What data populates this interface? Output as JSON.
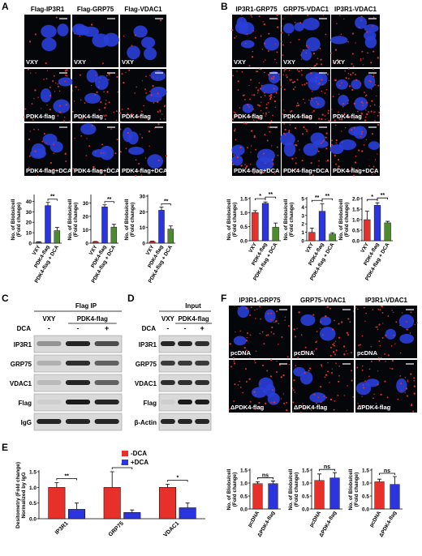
{
  "figure": {
    "A": {
      "label": "A",
      "headers": [
        "Flag-IP3R1",
        "Flag-GRP75",
        "Flag-VDAC1"
      ],
      "rows": [
        "VXY",
        "PDK4-flag",
        "PDK4-flag+DCA"
      ]
    },
    "B": {
      "label": "B",
      "headers": [
        "IP3R1-GRP75",
        "GRP75-VDAC1",
        "IP3R1-VDAC1"
      ],
      "rows": [
        "VXY",
        "PDK4-flag",
        "PDK4-flag+DCA"
      ]
    },
    "C": {
      "label": "C",
      "title": "Flag IP",
      "groups": [
        "VXY",
        "PDK4-flag"
      ],
      "treatment": "DCA",
      "signs": [
        "-",
        "-",
        "+"
      ],
      "rows": [
        "IP3R1",
        "GRP75",
        "VDAC1",
        "Flag",
        "IgG"
      ]
    },
    "D": {
      "label": "D",
      "title": "Input",
      "groups": [
        "VXY",
        "PDK4-flag"
      ],
      "treatment": "DCA",
      "signs": [
        "-",
        "-",
        "+"
      ],
      "rows": [
        "IP3R1",
        "GRP75",
        "VDAC1",
        "Flag",
        "β-Actin"
      ]
    },
    "E": {
      "label": "E"
    },
    "F": {
      "label": "F",
      "headers": [
        "IP3R1-GRP75",
        "GRP75-VDAC1",
        "IP3R1-VDAC1"
      ],
      "rows": [
        "pcDNA",
        "ΔPDK4-flag"
      ]
    }
  },
  "chart_data": [
    {
      "type": "bar",
      "ylabel": [
        "No. of Blobs/cell",
        "(Fold change)"
      ],
      "categories": [
        "VXY",
        "PDK4-flag",
        "PDK4-flag + DCA"
      ],
      "colors": [
        "#e8302a",
        "#2a35e0",
        "#4e8a2f"
      ],
      "values": [
        1,
        36,
        12
      ],
      "errors": [
        0.3,
        3,
        3
      ],
      "ylim": [
        0,
        45
      ],
      "yticks": [
        0,
        10,
        20,
        30,
        40
      ],
      "significance": [
        "**"
      ]
    },
    {
      "type": "bar",
      "ylabel": [
        "No. of Blobs/cell",
        "(Fold change)"
      ],
      "categories": [
        "VXY",
        "PDK4-flag",
        "PDK4-flag + DCA"
      ],
      "colors": [
        "#e8302a",
        "#2a35e0",
        "#4e8a2f"
      ],
      "values": [
        1,
        27,
        12
      ],
      "errors": [
        0.3,
        1.5,
        2
      ],
      "ylim": [
        0,
        35
      ],
      "yticks": [
        0,
        10,
        20,
        30
      ],
      "significance": [
        "**"
      ]
    },
    {
      "type": "bar",
      "ylabel": [
        "No. of Blobs/cell",
        "(Fold change)"
      ],
      "categories": [
        "VXY",
        "PDK4-flag",
        "PDK4-flag + DCA"
      ],
      "colors": [
        "#e8302a",
        "#2a35e0",
        "#4e8a2f"
      ],
      "values": [
        1,
        21,
        9
      ],
      "errors": [
        0.3,
        2,
        2
      ],
      "ylim": [
        0,
        30
      ],
      "yticks": [
        0,
        10,
        20,
        30
      ],
      "significance": [
        "**"
      ]
    },
    {
      "type": "bar",
      "ylabel": [
        "No. of Blobs/cell",
        "(Fold change)"
      ],
      "categories": [
        "VXY",
        "PDK4-flag",
        "PDK4-flag + DCA"
      ],
      "colors": [
        "#e8302a",
        "#2a35e0",
        "#4e8a2f"
      ],
      "values": [
        1.0,
        1.33,
        0.48
      ],
      "errors": [
        0.07,
        0.05,
        0.15
      ],
      "ylim": [
        0,
        1.5
      ],
      "yticks": [
        {
          "value": 0,
          "label": "0.0"
        },
        0.5,
        {
          "value": 1,
          "label": "1.0"
        },
        1.5
      ],
      "significance": [
        "*",
        "**"
      ]
    },
    {
      "type": "bar",
      "ylabel": [
        "No. of Blobs/cell",
        "(Fold change)"
      ],
      "categories": [
        "VXY",
        "PDK4-flag",
        "PDK4-flag + DCA"
      ],
      "colors": [
        "#e8302a",
        "#2a35e0",
        "#4e8a2f"
      ],
      "values": [
        1.0,
        3.5,
        0.8
      ],
      "errors": [
        0.5,
        0.9,
        0.15
      ],
      "ylim": [
        0,
        5
      ],
      "yticks": [
        0,
        1,
        2,
        3,
        4,
        5
      ],
      "significance": [
        "**",
        "**"
      ]
    },
    {
      "type": "bar",
      "ylabel": [
        "No. of Blobs/cell",
        "(Fold change)"
      ],
      "categories": [
        "VXY",
        "PDK4-flag",
        "PDK4-flag + DCA"
      ],
      "colors": [
        "#e8302a",
        "#2a35e0",
        "#4e8a2f"
      ],
      "values": [
        1.0,
        1.68,
        0.85
      ],
      "errors": [
        0.4,
        0.12,
        0.07
      ],
      "ylim": [
        0,
        2
      ],
      "yticks": [
        {
          "value": 0,
          "label": "0.0"
        },
        0.5,
        {
          "value": 1,
          "label": "1.0"
        },
        1.5,
        {
          "value": 2,
          "label": "2.0"
        }
      ],
      "significance": [
        "*",
        "**"
      ]
    },
    {
      "type": "bar",
      "ylabel": [
        "Desitometry (Fold change)",
        "Normalized by IgG"
      ],
      "categories": [
        "IP3R1",
        "GRP75",
        "VDAC1"
      ],
      "series": [
        {
          "name": "-DCA",
          "color": "#e8302a",
          "values": [
            1,
            1,
            1
          ],
          "errors": [
            0.15,
            0.5,
            0.1
          ]
        },
        {
          "name": "+DCA",
          "color": "#2a35e0",
          "values": [
            0.3,
            0.2,
            0.35
          ],
          "errors": [
            0.2,
            0.08,
            0.15
          ]
        }
      ],
      "ylim": [
        0,
        1.5
      ],
      "yticks": [
        {
          "value": 0,
          "label": "0.0"
        },
        0.5,
        {
          "value": 1,
          "label": "1.0"
        },
        1.5
      ],
      "significance": [
        "**",
        "*",
        "*"
      ]
    },
    {
      "type": "bar",
      "ylabel": [
        "No. of Blobs/cell",
        "(Fold change)"
      ],
      "categories": [
        "pcDNA",
        "ΔPDK4-flag"
      ],
      "colors": [
        "#e8302a",
        "#2a35e0"
      ],
      "values": [
        0.98,
        0.98
      ],
      "errors": [
        0.07,
        0.1
      ],
      "ylim": [
        0,
        1.5
      ],
      "yticks": [
        {
          "value": 0,
          "label": "0.0"
        },
        0.5,
        {
          "value": 1,
          "label": "1.0"
        },
        1.5
      ],
      "significance": [
        "ns"
      ]
    },
    {
      "type": "bar",
      "ylabel": [
        "No. of Blobs/cell",
        "(Fold change)"
      ],
      "categories": [
        "pcDNA",
        "ΔPDK4-flag"
      ],
      "colors": [
        "#e8302a",
        "#2a35e0"
      ],
      "values": [
        1.1,
        1.2
      ],
      "errors": [
        0.25,
        0.2
      ],
      "ylim": [
        0,
        1.5
      ],
      "yticks": [
        {
          "value": 0,
          "label": "0.0"
        },
        0.5,
        {
          "value": 1,
          "label": "1.0"
        },
        1.5
      ],
      "significance": [
        "ns"
      ]
    },
    {
      "type": "bar",
      "ylabel": [
        "No. of Blobs/cell",
        "(Fold change)"
      ],
      "categories": [
        "pcDNA",
        "ΔPDK4-flag"
      ],
      "colors": [
        "#e8302a",
        "#2a35e0"
      ],
      "values": [
        1.05,
        0.95
      ],
      "errors": [
        0.1,
        0.3
      ],
      "ylim": [
        0,
        1.5
      ],
      "yticks": [
        {
          "value": 0,
          "label": "0.0"
        },
        0.5,
        {
          "value": 1,
          "label": "1.0"
        },
        1.5
      ],
      "significance": [
        "ns"
      ]
    }
  ]
}
